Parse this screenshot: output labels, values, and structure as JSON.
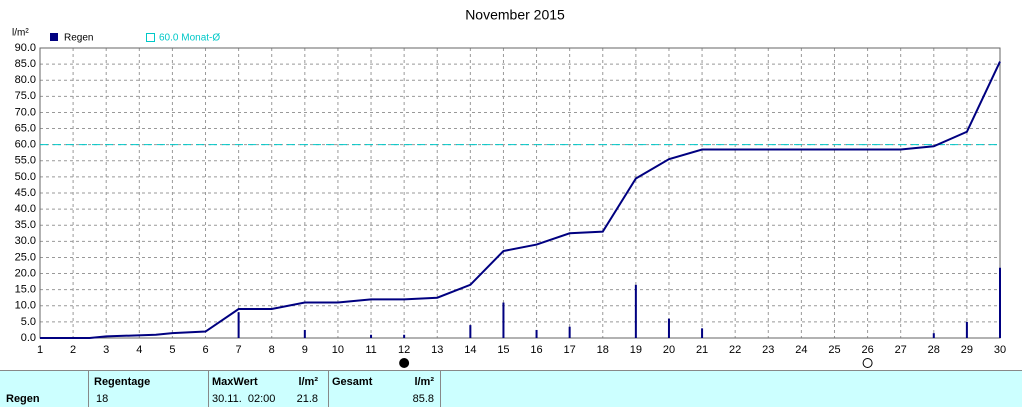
{
  "chart_data": {
    "type": "bar-line",
    "title": "November 2015",
    "ylabel": "l/m²",
    "xlim": [
      1,
      30
    ],
    "xticks": [
      1,
      2,
      3,
      4,
      5,
      6,
      7,
      8,
      9,
      10,
      11,
      12,
      13,
      14,
      15,
      16,
      17,
      18,
      19,
      20,
      21,
      22,
      23,
      24,
      25,
      26,
      27,
      28,
      29,
      30
    ],
    "ylim": [
      0,
      90
    ],
    "yticks": [
      {
        "value": 0,
        "label": "0.0"
      },
      {
        "value": 5,
        "label": "5.0"
      },
      {
        "value": 10,
        "label": "10.0"
      },
      {
        "value": 15,
        "label": "15.0"
      },
      {
        "value": 20,
        "label": "20.0"
      },
      {
        "value": 25,
        "label": "25.0"
      },
      {
        "value": 30,
        "label": "30.0"
      },
      {
        "value": 35,
        "label": "35.0"
      },
      {
        "value": 40,
        "label": "40.0"
      },
      {
        "value": 45,
        "label": "45.0"
      },
      {
        "value": 50,
        "label": "50.0"
      },
      {
        "value": 55,
        "label": "55.0"
      },
      {
        "value": 60,
        "label": "60.0"
      },
      {
        "value": 65,
        "label": "65.0"
      },
      {
        "value": 70,
        "label": "70.0"
      },
      {
        "value": 75,
        "label": "75.0"
      },
      {
        "value": 80,
        "label": "80.0"
      },
      {
        "value": 85,
        "label": "85.0"
      },
      {
        "value": 90,
        "label": "90.0"
      }
    ],
    "grid": true,
    "series": [
      {
        "name": "Regen",
        "type": "bar",
        "color": "#000080",
        "x": [
          7,
          9,
          11,
          12,
          14,
          15,
          16,
          17,
          19,
          20,
          21,
          28,
          29,
          30
        ],
        "values": [
          8,
          2.5,
          1,
          1,
          4,
          11,
          2.5,
          3.5,
          16.5,
          6,
          3,
          1.5,
          5,
          21.8
        ]
      },
      {
        "type": "line",
        "color": "#000080",
        "x": [
          1,
          2.5,
          3,
          4.5,
          5,
          6,
          7,
          8,
          9,
          10,
          11,
          12,
          13,
          14,
          15,
          16,
          17,
          18,
          19,
          20,
          21,
          27,
          28,
          29,
          30
        ],
        "values": [
          0,
          0,
          0.5,
          1,
          1.5,
          2,
          9,
          9,
          11,
          11,
          12,
          12,
          12.5,
          16.5,
          27,
          29,
          32.5,
          33,
          49.5,
          55.5,
          58.5,
          58.5,
          59.5,
          64,
          85.8
        ]
      }
    ],
    "reference_line": {
      "label": "60.0 Monat-Ø",
      "value": 60,
      "color": "#00c8c8"
    },
    "moon_phases": [
      {
        "x": 12,
        "filled": true
      },
      {
        "x": 26,
        "filled": false
      }
    ]
  },
  "table": {
    "headers": [
      "Regentage",
      "MaxWert",
      "l/m²",
      "Gesamt",
      "l/m²"
    ],
    "row_label": "Regen",
    "row": [
      "18",
      "30.11.  02:00",
      "21.8",
      "85.8"
    ]
  }
}
